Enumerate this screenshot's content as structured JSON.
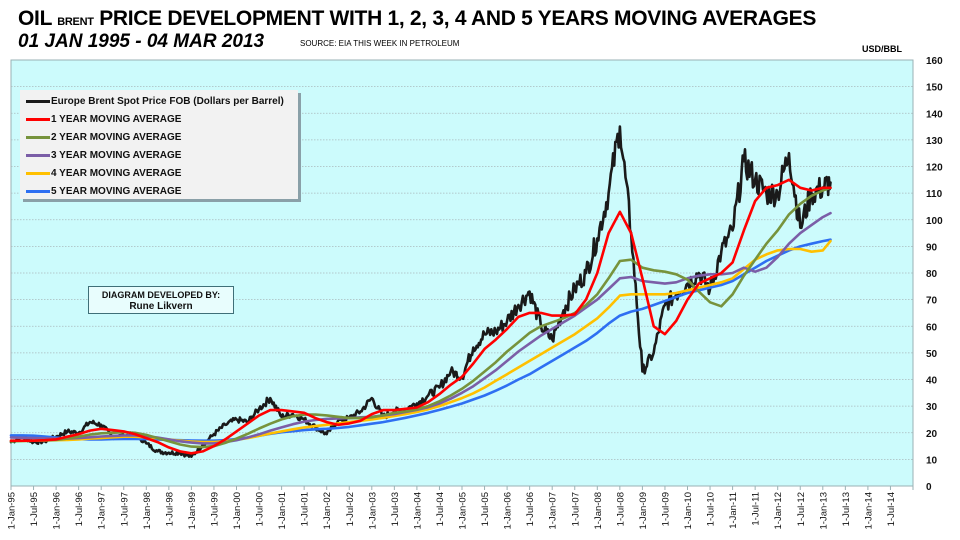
{
  "header": {
    "title_part1": "OIL",
    "title_small": "BRENT",
    "title_part2": "PRICE DEVELOPMENT WITH 1, 2, 3, 4 AND 5 YEARS MOVING AVERAGES",
    "subtitle": "01 JAN 1995 - 04 MAR 2013",
    "source": "SOURCE: EIA THIS WEEK IN PETROLEUM",
    "unit": "USD/BBL"
  },
  "credit": {
    "line1": "DIAGRAM DEVELOPED BY:",
    "line2": "Rune Likvern"
  },
  "chart_data": {
    "type": "line",
    "title": "OIL BRENT PRICE DEVELOPMENT WITH 1, 2, 3, 4 AND 5 YEARS MOVING AVERAGES",
    "subtitle": "01 JAN 1995 - 04 MAR 2013",
    "xlabel": "",
    "ylabel": "USD/BBL",
    "ylim": [
      0,
      160
    ],
    "yticks": [
      0,
      10,
      20,
      30,
      40,
      50,
      60,
      70,
      80,
      90,
      100,
      110,
      120,
      130,
      140,
      150,
      160
    ],
    "xlim": [
      1995.0,
      2015.0
    ],
    "xticks": [
      "1-Jan-95",
      "1-Jul-95",
      "1-Jan-96",
      "1-Jul-96",
      "1-Jan-97",
      "1-Jul-97",
      "1-Jan-98",
      "1-Jul-98",
      "1-Jan-99",
      "1-Jul-99",
      "1-Jan-00",
      "1-Jul-00",
      "1-Jan-01",
      "1-Jul-01",
      "1-Jan-02",
      "1-Jul-02",
      "1-Jan-03",
      "1-Jul-03",
      "1-Jan-04",
      "1-Jul-04",
      "1-Jan-05",
      "1-Jul-05",
      "1-Jan-06",
      "1-Jul-06",
      "1-Jan-07",
      "1-Jul-07",
      "1-Jan-08",
      "1-Jul-08",
      "1-Jan-09",
      "1-Jul-09",
      "1-Jan-10",
      "1-Jul-10",
      "1-Jan-11",
      "1-Jul-11",
      "1-Jan-12",
      "1-Jul-12",
      "1-Jan-13",
      "1-Jul-13",
      "1-Jan-14",
      "1-Jul-14"
    ],
    "grid": true,
    "legend_position": "top-left",
    "x": [
      1995.0,
      1995.25,
      1995.5,
      1995.75,
      1996.0,
      1996.25,
      1996.5,
      1996.75,
      1997.0,
      1997.25,
      1997.5,
      1997.75,
      1998.0,
      1998.25,
      1998.5,
      1998.75,
      1999.0,
      1999.25,
      1999.5,
      1999.75,
      2000.0,
      2000.25,
      2000.5,
      2000.75,
      2001.0,
      2001.25,
      2001.5,
      2001.75,
      2002.0,
      2002.25,
      2002.5,
      2002.75,
      2003.0,
      2003.25,
      2003.5,
      2003.75,
      2004.0,
      2004.25,
      2004.5,
      2004.75,
      2005.0,
      2005.25,
      2005.5,
      2005.75,
      2006.0,
      2006.25,
      2006.5,
      2006.75,
      2007.0,
      2007.25,
      2007.5,
      2007.75,
      2008.0,
      2008.25,
      2008.5,
      2008.75,
      2009.0,
      2009.25,
      2009.5,
      2009.75,
      2010.0,
      2010.25,
      2010.5,
      2010.75,
      2011.0,
      2011.25,
      2011.5,
      2011.75,
      2012.0,
      2012.25,
      2012.5,
      2012.75,
      2013.0,
      2013.17
    ],
    "series": [
      {
        "name": "Europe Brent Spot Price FOB (Dollars per Barrel)",
        "color": "#1a1a1a",
        "values": [
          16.5,
          18.5,
          16.5,
          16.8,
          18.5,
          20.5,
          20.0,
          24.0,
          23.0,
          18.5,
          18.8,
          19.5,
          16.0,
          13.0,
          12.5,
          12.5,
          11.0,
          15.5,
          19.5,
          23.0,
          25.0,
          24.0,
          29.0,
          33.0,
          26.0,
          27.0,
          25.0,
          22.0,
          19.5,
          24.5,
          25.5,
          28.0,
          33.0,
          26.0,
          28.0,
          29.0,
          31.0,
          34.0,
          37.0,
          43.0,
          41.0,
          52.0,
          57.0,
          58.0,
          62.0,
          68.0,
          73.0,
          60.0,
          55.0,
          66.0,
          74.0,
          80.0,
          93.0,
          110.0,
          135.0,
          95.0,
          43.0,
          50.0,
          68.0,
          72.0,
          76.0,
          80.0,
          74.0,
          88.0,
          96.0,
          122.0,
          115.0,
          110.0,
          110.0,
          125.0,
          97.0,
          110.0,
          112.0,
          114.0
        ]
      },
      {
        "name": "1 YEAR MOVING AVERAGE",
        "color": "#ff0000",
        "values": [
          17.0,
          17.0,
          17.0,
          17.2,
          17.5,
          18.5,
          19.5,
          20.8,
          21.5,
          21.0,
          20.5,
          19.5,
          18.0,
          16.5,
          14.5,
          13.0,
          12.3,
          13.0,
          15.0,
          17.5,
          20.5,
          23.5,
          26.5,
          28.5,
          28.5,
          28.0,
          27.5,
          25.5,
          24.0,
          23.0,
          23.5,
          24.5,
          27.0,
          28.5,
          28.5,
          29.0,
          29.5,
          31.5,
          34.5,
          38.0,
          41.0,
          46.0,
          51.5,
          55.0,
          59.0,
          63.5,
          65.0,
          65.0,
          64.0,
          64.0,
          64.5,
          70.0,
          80.0,
          95.0,
          103.0,
          95.0,
          78.0,
          60.0,
          57.0,
          62.0,
          70.0,
          76.0,
          78.0,
          80.0,
          84.0,
          96.0,
          107.0,
          112.0,
          113.0,
          115.0,
          112.0,
          111.0,
          112.0,
          112.0
        ]
      },
      {
        "name": "2 YEAR MOVING AVERAGE",
        "color": "#77933c",
        "values": [
          16.8,
          16.9,
          17.0,
          17.1,
          17.3,
          17.8,
          18.5,
          19.3,
          19.8,
          20.0,
          20.2,
          20.0,
          19.2,
          18.0,
          16.8,
          15.6,
          14.8,
          14.6,
          15.0,
          16.2,
          17.8,
          19.6,
          21.6,
          23.4,
          25.0,
          26.2,
          26.8,
          26.8,
          26.5,
          26.0,
          25.5,
          25.5,
          25.8,
          26.5,
          27.5,
          28.0,
          28.8,
          30.0,
          31.8,
          34.0,
          36.5,
          39.5,
          43.0,
          46.5,
          50.5,
          54.0,
          57.5,
          60.0,
          61.5,
          63.0,
          65.0,
          68.0,
          72.0,
          78.0,
          84.5,
          85.0,
          82.0,
          81.0,
          80.5,
          79.5,
          77.5,
          73.0,
          69.0,
          67.5,
          72.0,
          79.0,
          85.0,
          91.0,
          96.0,
          102.0,
          106.0,
          109.0,
          111.0,
          112.0
        ]
      },
      {
        "name": "3 YEAR MOVING AVERAGE",
        "color": "#7b5ea7",
        "values": [
          18.2,
          18.1,
          18.0,
          17.9,
          17.8,
          17.8,
          18.0,
          18.3,
          18.6,
          18.8,
          19.0,
          19.0,
          18.7,
          18.2,
          17.5,
          16.8,
          16.3,
          16.0,
          16.0,
          16.5,
          17.2,
          18.2,
          19.4,
          20.8,
          22.0,
          23.2,
          24.2,
          24.8,
          25.2,
          25.4,
          25.5,
          25.8,
          26.0,
          26.5,
          27.0,
          27.8,
          28.6,
          29.6,
          31.0,
          32.8,
          35.0,
          37.5,
          40.5,
          43.5,
          47.0,
          50.5,
          53.5,
          56.5,
          59.0,
          61.5,
          64.0,
          67.0,
          70.0,
          74.0,
          78.0,
          78.5,
          77.0,
          76.5,
          76.0,
          76.5,
          78.0,
          79.0,
          79.5,
          79.5,
          80.0,
          82.0,
          80.5,
          82.0,
          86.0,
          91.0,
          95.0,
          98.0,
          101.0,
          102.5
        ]
      },
      {
        "name": "4 YEAR MOVING AVERAGE",
        "color": "#ffc000",
        "values": [
          16.8,
          16.9,
          17.0,
          17.1,
          17.2,
          17.3,
          17.5,
          17.8,
          18.0,
          18.3,
          18.5,
          18.5,
          18.3,
          18.0,
          17.5,
          17.0,
          16.7,
          16.5,
          16.5,
          16.8,
          17.3,
          18.0,
          18.8,
          19.7,
          20.5,
          21.3,
          22.0,
          22.5,
          23.0,
          23.5,
          24.0,
          24.5,
          25.0,
          25.6,
          26.3,
          27.0,
          27.8,
          28.8,
          30.0,
          31.5,
          33.0,
          34.8,
          37.0,
          39.5,
          42.0,
          44.5,
          47.0,
          49.5,
          52.0,
          54.5,
          57.0,
          60.0,
          63.0,
          67.0,
          71.5,
          72.0,
          72.0,
          72.0,
          72.0,
          72.5,
          73.5,
          74.5,
          75.5,
          76.5,
          78.0,
          81.5,
          85.0,
          87.0,
          88.5,
          89.0,
          89.0,
          88.0,
          88.5,
          92.0
        ]
      },
      {
        "name": "5 YEAR MOVING AVERAGE",
        "color": "#2e6ff2",
        "values": [
          19.0,
          19.0,
          18.9,
          18.6,
          18.2,
          17.8,
          17.6,
          17.5,
          17.5,
          17.6,
          17.7,
          17.7,
          17.6,
          17.5,
          17.3,
          17.2,
          17.1,
          17.0,
          17.0,
          17.2,
          17.6,
          18.2,
          18.9,
          19.6,
          20.2,
          20.6,
          21.0,
          21.3,
          21.5,
          21.8,
          22.2,
          22.8,
          23.4,
          24.0,
          24.8,
          25.6,
          26.5,
          27.5,
          28.6,
          29.8,
          31.0,
          32.5,
          34.0,
          35.8,
          37.8,
          40.0,
          42.0,
          44.5,
          47.0,
          49.5,
          52.0,
          54.5,
          57.5,
          61.0,
          64.0,
          65.5,
          66.5,
          68.0,
          69.5,
          71.0,
          72.5,
          73.5,
          74.5,
          75.5,
          77.0,
          79.5,
          82.0,
          84.5,
          86.5,
          88.5,
          90.0,
          91.0,
          92.0,
          92.5
        ]
      }
    ]
  },
  "legend": {
    "items": [
      {
        "label": "Europe Brent Spot Price FOB (Dollars per Barrel)",
        "color": "#1a1a1a"
      },
      {
        "label": "1 YEAR MOVING AVERAGE",
        "color": "#ff0000"
      },
      {
        "label": "2 YEAR MOVING AVERAGE",
        "color": "#77933c"
      },
      {
        "label": "3 YEAR MOVING AVERAGE",
        "color": "#7b5ea7"
      },
      {
        "label": "4 YEAR MOVING AVERAGE",
        "color": "#ffc000"
      },
      {
        "label": "5 YEAR MOVING AVERAGE",
        "color": "#2e6ff2"
      }
    ]
  },
  "colors": {
    "plot_background": "#ccfbfc",
    "gridline": "#a9b9bb",
    "axis": "#9ab1b4"
  }
}
